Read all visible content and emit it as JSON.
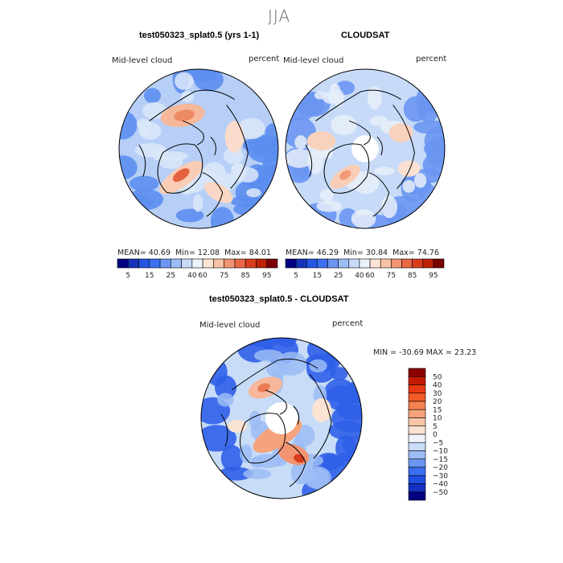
{
  "figure": {
    "season": "JJA"
  },
  "chart_data": [
    {
      "type": "heatmap",
      "title": "test050323_splat0.5 (yrs 1-1)",
      "variable": "Mid-level cloud",
      "units": "percent",
      "stats": {
        "mean_label": "MEAN=",
        "mean": "40.69",
        "min_label": "Min=",
        "min": "12.08",
        "max_label": "Max=",
        "max": "84.01"
      },
      "colorbar": {
        "levels": [
          "5",
          "15",
          "25",
          "40",
          "60",
          "75",
          "85",
          "95"
        ],
        "colors": [
          "#000080",
          "#1434b8",
          "#2255e0",
          "#3c6ef0",
          "#6a96f2",
          "#9bbcf5",
          "#c8dcf7",
          "#ecf2f9",
          "#fce3d4",
          "#f8c2a6",
          "#f29472",
          "#e86746",
          "#d83d1c",
          "#bd2207",
          "#7a0000"
        ]
      }
    },
    {
      "type": "heatmap",
      "title": "CLOUDSAT",
      "variable": "Mid-level cloud",
      "units": "percent",
      "stats": {
        "mean_label": "MEAN=",
        "mean": "46.29",
        "min_label": "Min=",
        "min": "30.84",
        "max_label": "Max=",
        "max": "74.76"
      },
      "colorbar": {
        "levels": [
          "5",
          "15",
          "25",
          "40",
          "60",
          "75",
          "85",
          "95"
        ],
        "colors": [
          "#000080",
          "#1434b8",
          "#2255e0",
          "#3c6ef0",
          "#6a96f2",
          "#9bbcf5",
          "#c8dcf7",
          "#ecf2f9",
          "#fce3d4",
          "#f8c2a6",
          "#f29472",
          "#e86746",
          "#d83d1c",
          "#bd2207",
          "#7a0000"
        ]
      }
    },
    {
      "type": "heatmap",
      "title": "test050323_splat0.5 - CLOUDSAT",
      "variable": "Mid-level cloud",
      "units": "percent",
      "stats": {
        "min_label": "MIN =",
        "min": "-30.69",
        "max_label": "MAX =",
        "max": "23.23"
      },
      "colorbar": {
        "levels": [
          "50",
          "40",
          "30",
          "20",
          "15",
          "10",
          "5",
          "0",
          "−5",
          "−10",
          "−15",
          "−20",
          "−30",
          "−40",
          "−50"
        ],
        "colors": [
          "#8b0000",
          "#c41a00",
          "#e83a10",
          "#f25a28",
          "#f58050",
          "#f6a27a",
          "#f8c5a8",
          "#fbe3d3",
          "#f0f3f8",
          "#c8dcf7",
          "#9bbcf5",
          "#6a96f2",
          "#3c6ef0",
          "#1f4ee0",
          "#1430c0",
          "#000080"
        ]
      }
    }
  ]
}
